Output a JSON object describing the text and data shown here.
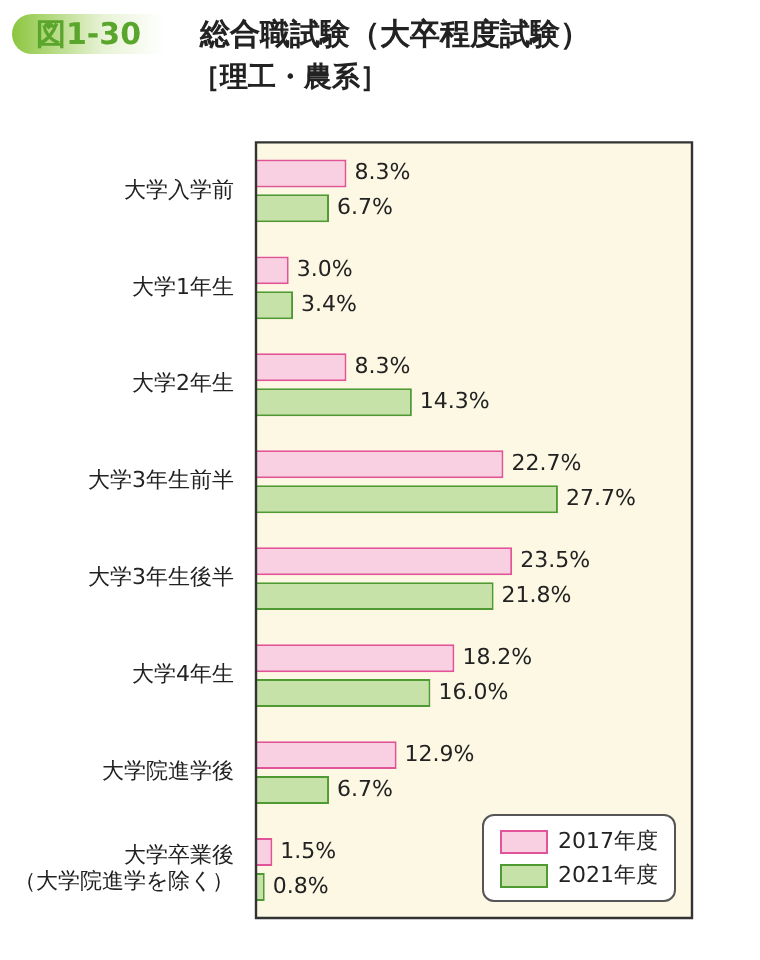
{
  "chart_data": {
    "type": "bar",
    "orientation": "horizontal",
    "title": "総合職試験（大卒程度試験）",
    "subtitle": "［理工・農系］",
    "annotations": [
      "図1-30"
    ],
    "categories": [
      "大学入学前",
      "大学1年生",
      "大学2年生",
      "大学3年生前半",
      "大学3年生後半",
      "大学4年生",
      "大学院進学後",
      "大学卒業後（大学院進学を除く）"
    ],
    "series": [
      {
        "name": "2017年度",
        "color": "#f8d0e2",
        "values": [
          8.3,
          3.0,
          8.3,
          22.7,
          23.5,
          18.2,
          12.9,
          1.5
        ],
        "value_labels": [
          "8.3%",
          "3.0%",
          "8.3%",
          "22.7%",
          "23.5%",
          "18.2%",
          "12.9%",
          "1.5%"
        ]
      },
      {
        "name": "2021年度",
        "color": "#c6e2a8",
        "values": [
          6.7,
          3.4,
          14.3,
          27.7,
          21.8,
          16.0,
          6.7,
          0.8
        ],
        "value_labels": [
          "6.7%",
          "3.4%",
          "14.3%",
          "27.7%",
          "21.8%",
          "16.0%",
          "6.7%",
          "0.8%"
        ]
      }
    ],
    "legend": "bottom right",
    "tick_labels": "y",
    "grid": false
  }
}
